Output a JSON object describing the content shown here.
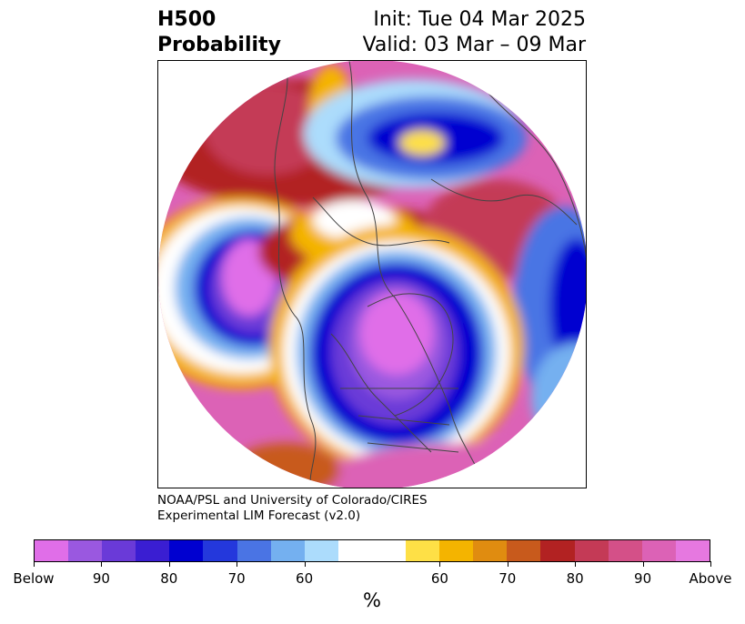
{
  "header": {
    "left_line1": "H500",
    "left_line2": "Probability",
    "right_line1": "Init: Tue 04 Mar 2025",
    "right_line2": "Valid: 03 Mar – 09 Mar"
  },
  "credit": {
    "line1": "NOAA/PSL and University of Colorado/CIRES",
    "line2": "Experimental LIM Forecast (v2.0)"
  },
  "colorbar": {
    "colors": [
      "#e06ee8",
      "#9a58e0",
      "#6a3ad8",
      "#3a1ed2",
      "#0000d0",
      "#2438dc",
      "#4a74e4",
      "#74b0f0",
      "#acdcfc",
      "#ffffff",
      "#fee046",
      "#f4b400",
      "#e08c10",
      "#c85a1c",
      "#b22222",
      "#c43a56",
      "#d45088",
      "#dc62b6",
      "#e678e0"
    ],
    "tick_labels": [
      "Below",
      "90",
      "80",
      "70",
      "60",
      "60",
      "70",
      "80",
      "90",
      "Above"
    ],
    "unit": "%"
  },
  "map": {
    "projection": "north polar stereographic",
    "colors": {
      "strong_below": "#0000d0",
      "deep_below": "#e06ee8",
      "above": "#e678e0",
      "red": "#b22222",
      "yellow": "#fee046",
      "land_lines": "#444444"
    }
  }
}
